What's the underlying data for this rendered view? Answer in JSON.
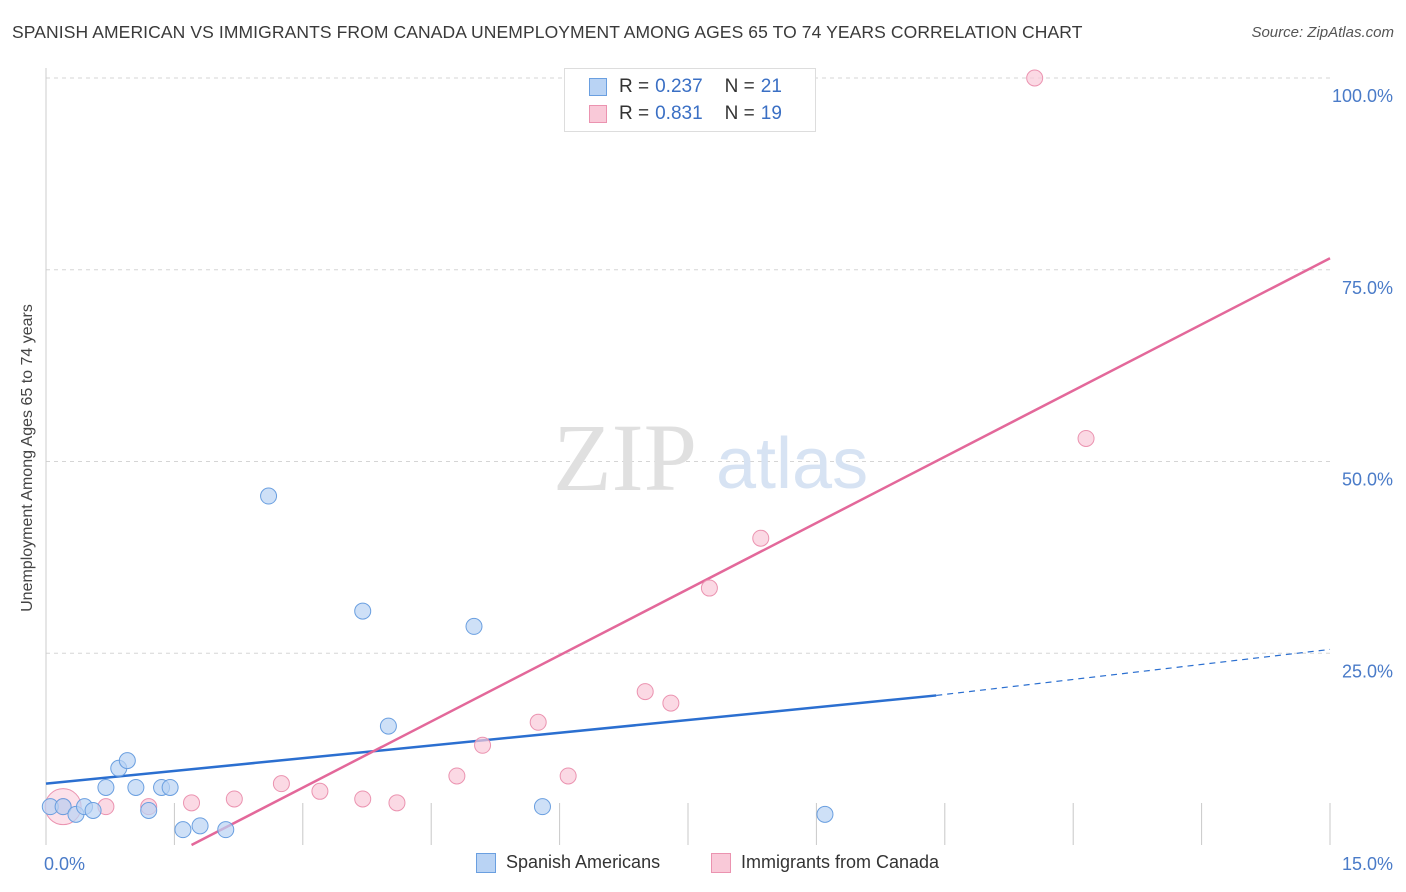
{
  "title": "SPANISH AMERICAN VS IMMIGRANTS FROM CANADA UNEMPLOYMENT AMONG AGES 65 TO 74 YEARS CORRELATION CHART",
  "source": "Source: ZipAtlas.com",
  "watermark": {
    "zip": "ZIP",
    "atlas": "atlas"
  },
  "legend": {
    "series1": {
      "r_label": "R =",
      "r_value": "0.237",
      "n_label": "N =",
      "n_value": "21"
    },
    "series2": {
      "r_label": "R =",
      "r_value": "0.831",
      "n_label": "N =",
      "n_value": "19"
    }
  },
  "bottom_legend": {
    "series1": "Spanish Americans",
    "series2": "Immigrants from Canada"
  },
  "colors": {
    "blue_fill": "#b9d3f4",
    "blue_stroke": "#6a9fe0",
    "blue_line": "#2b6fd0",
    "pink_fill": "#f9c9d8",
    "pink_stroke": "#eb93b0",
    "pink_line": "#e3689a",
    "tick_text": "#4a7bc8",
    "grid": "#d5d5d5"
  },
  "chart_data": {
    "type": "scatter",
    "title": "SPANISH AMERICAN VS IMMIGRANTS FROM CANADA UNEMPLOYMENT AMONG AGES 65 TO 74 YEARS CORRELATION CHART",
    "xlabel": "",
    "ylabel": "Unemployment Among Ages 65 to 74 years",
    "xlim": [
      0,
      15
    ],
    "ylim": [
      0,
      100
    ],
    "x_tick_labels": [
      "0.0%",
      "15.0%"
    ],
    "y_ticks": [
      25,
      50,
      75,
      100
    ],
    "y_tick_labels": [
      "25.0%",
      "50.0%",
      "75.0%",
      "100.0%"
    ],
    "series": [
      {
        "name": "Spanish Americans",
        "points": [
          [
            0.05,
            5.0
          ],
          [
            0.2,
            5.0
          ],
          [
            0.35,
            4.0
          ],
          [
            0.45,
            5.0
          ],
          [
            0.55,
            4.5
          ],
          [
            0.7,
            7.5
          ],
          [
            0.85,
            10.0
          ],
          [
            0.95,
            11.0
          ],
          [
            1.05,
            7.5
          ],
          [
            1.2,
            4.5
          ],
          [
            1.35,
            7.5
          ],
          [
            1.45,
            7.5
          ],
          [
            1.6,
            2.0
          ],
          [
            1.8,
            2.5
          ],
          [
            2.1,
            2.0
          ],
          [
            2.6,
            45.5
          ],
          [
            3.7,
            30.5
          ],
          [
            4.0,
            15.5
          ],
          [
            5.0,
            28.5
          ],
          [
            5.8,
            5.0
          ],
          [
            9.1,
            4.0
          ]
        ],
        "trend": {
          "x0": 0.0,
          "y0": 8.0,
          "x1": 10.4,
          "y1": 19.5,
          "dash_to_x": 15.0,
          "dash_to_y": 25.5
        }
      },
      {
        "name": "Immigrants from Canada",
        "points": [
          [
            0.2,
            5.0
          ],
          [
            0.7,
            5.0
          ],
          [
            1.2,
            5.0
          ],
          [
            1.7,
            5.5
          ],
          [
            2.2,
            6.0
          ],
          [
            2.75,
            8.0
          ],
          [
            3.2,
            7.0
          ],
          [
            3.7,
            6.0
          ],
          [
            4.1,
            5.5
          ],
          [
            4.8,
            9.0
          ],
          [
            5.1,
            13.0
          ],
          [
            5.75,
            16.0
          ],
          [
            6.1,
            9.0
          ],
          [
            7.0,
            20.0
          ],
          [
            7.3,
            18.5
          ],
          [
            7.75,
            33.5
          ],
          [
            8.35,
            40.0
          ],
          [
            11.55,
            100.0
          ],
          [
            12.15,
            53.0
          ]
        ],
        "trend": {
          "x0": 1.7,
          "y0": 0.0,
          "x1": 15.0,
          "y1": 76.5
        }
      }
    ],
    "grid": true,
    "legend_position": "top-center"
  }
}
